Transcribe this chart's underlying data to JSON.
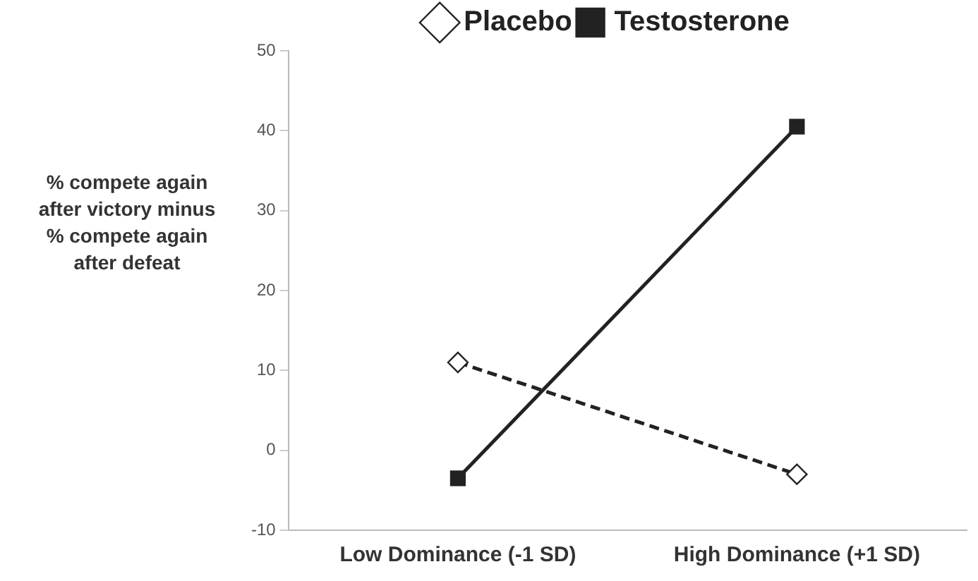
{
  "chart_data": {
    "type": "line",
    "ylabel": "% compete again after victory minus % compete again after defeat",
    "categories": [
      "Low Dominance (-1 SD)",
      "High Dominance (+1 SD)"
    ],
    "series": [
      {
        "name": "Placebo",
        "color": "#222222",
        "values": [
          11,
          -3
        ],
        "marker": "diamond",
        "line_style": "dashed"
      },
      {
        "name": "Testosterone",
        "color": "#222222",
        "values": [
          -3.5,
          40.5
        ],
        "marker": "square",
        "line_style": "solid"
      }
    ],
    "ylim": [
      -10,
      50
    ],
    "yticks": [
      -10,
      0,
      10,
      20,
      30,
      40,
      50
    ],
    "grid": false,
    "legend": "top"
  }
}
